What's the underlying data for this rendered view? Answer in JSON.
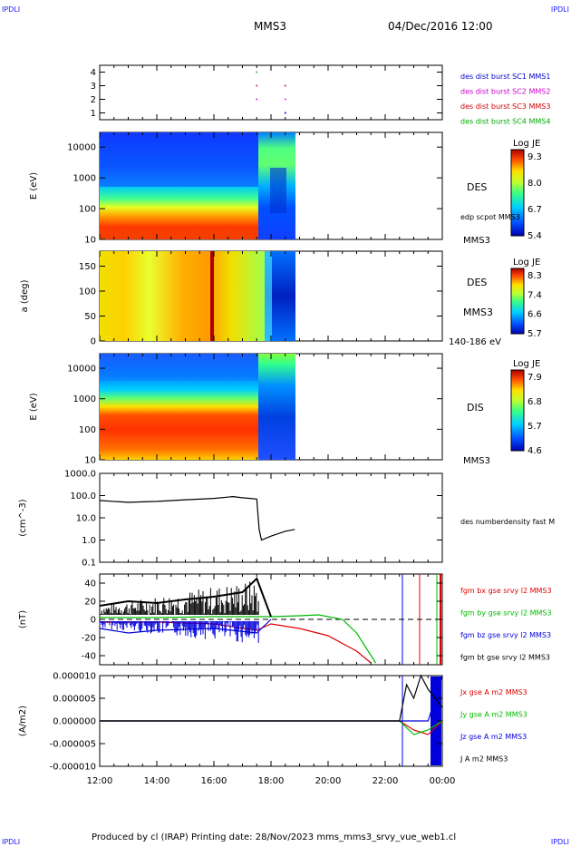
{
  "corner_tl": "IPDLI",
  "corner_tr": "IPDLI",
  "corner_bl": "IPDLI",
  "corner_br": "IPDLI",
  "header": {
    "spacecraft": "MMS3",
    "datetime": "04/Dec/2016 12:00"
  },
  "footer": "Produced by cl (IRAP)   Printing date: 28/Nov/2023   mms_mms3_srvy_vue_web1.cl",
  "x_ticks": [
    "12:00",
    "14:00",
    "16:00",
    "18:00",
    "20:00",
    "22:00",
    "00:00"
  ],
  "panel1": {
    "yticks": [
      "4",
      "3",
      "2",
      "1"
    ],
    "legend": [
      {
        "text": "des dist burst SC1 MMS1",
        "color": "#0000cc"
      },
      {
        "text": "des dist burst SC2 MMS2",
        "color": "#cc00cc"
      },
      {
        "text": "des dist burst SC3 MMS3",
        "color": "#cc0000"
      },
      {
        "text": "des dist burst SC4 MMS4",
        "color": "#00aa00"
      }
    ]
  },
  "panel2": {
    "ylabel": "E (eV)",
    "yticks": [
      "10000",
      "1000",
      "100",
      "10"
    ],
    "label1": "DES",
    "label2": "edp scpot MMS3",
    "label3": "MMS3",
    "cbar": {
      "title": "Log JE",
      "ticks": [
        "9.3",
        "8.0",
        "6.7",
        "5.4"
      ]
    }
  },
  "panel3": {
    "ylabel": "a (deg)",
    "yticks": [
      "150",
      "100",
      "50",
      "0"
    ],
    "label1": "DES",
    "label2": "MMS3",
    "label3": "140-186 eV",
    "cbar": {
      "title": "Log JE",
      "ticks": [
        "8.3",
        "7.4",
        "6.6",
        "5.7"
      ]
    }
  },
  "panel4": {
    "ylabel": "E (eV)",
    "yticks": [
      "10000",
      "1000",
      "100",
      "10"
    ],
    "label1": "DIS",
    "label2": "MMS3",
    "cbar": {
      "title": "Log JE",
      "ticks": [
        "7.9",
        "6.8",
        "5.7",
        "4.6"
      ]
    }
  },
  "panel5": {
    "ylabel": "(cm^-3)",
    "yticks": [
      "1000.0",
      "100.0",
      "10.0",
      "1.0",
      "0.1"
    ],
    "legend": "des numberdensity fast M"
  },
  "panel6": {
    "ylabel": "(nT)",
    "yticks": [
      "40",
      "20",
      "0",
      "-20",
      "-40"
    ],
    "legend": [
      {
        "text": "fgm bx gse srvy l2 MMS3",
        "color": "#dd0000"
      },
      {
        "text": "fgm by gse srvy l2 MMS3",
        "color": "#00bb00"
      },
      {
        "text": "fgm bz gse srvy l2 MMS3",
        "color": "#0000dd"
      },
      {
        "text": "fgm bt gse srvy l2 MMS3",
        "color": "#000000"
      }
    ]
  },
  "panel7": {
    "ylabel": "(A/m2)",
    "yticks": [
      "0.000010",
      "0.000005",
      "0.000000",
      "-0.000005",
      "-0.000010"
    ],
    "legend": [
      {
        "text": "Jx gse A m2 MMS3",
        "color": "#dd0000"
      },
      {
        "text": "Jy gse A m2 MMS3",
        "color": "#00bb00"
      },
      {
        "text": "Jz gse A m2 MMS3",
        "color": "#0000dd"
      },
      {
        "text": "J A m2 MMS3",
        "color": "#000000"
      }
    ]
  },
  "chart_data": [
    {
      "type": "scatter",
      "title": "",
      "x_range": [
        "12:00",
        "00:00"
      ],
      "ylim": [
        0.5,
        4.5
      ],
      "series": [
        {
          "name": "des dist burst SC1 MMS1",
          "x": [
            "18:30",
            "18:30"
          ],
          "y": [
            1,
            1
          ]
        },
        {
          "name": "des dist burst SC2 MMS2",
          "x": [
            "17:30",
            "18:30"
          ],
          "y": [
            2,
            2
          ]
        },
        {
          "name": "des dist burst SC3 MMS3",
          "x": [
            "17:30",
            "18:30"
          ],
          "y": [
            3,
            3
          ]
        },
        {
          "name": "des dist burst SC4 MMS4",
          "x": [
            "17:30"
          ],
          "y": [
            4
          ]
        }
      ]
    },
    {
      "type": "heatmap",
      "ylabel": "E (eV)",
      "yscale": "log",
      "ylim": [
        10,
        30000
      ],
      "x_range": [
        "12:00",
        "18:50"
      ],
      "colorbar": {
        "title": "Log JE",
        "range": [
          5.4,
          9.3
        ]
      }
    },
    {
      "type": "heatmap",
      "ylabel": "a (deg)",
      "ylim": [
        0,
        180
      ],
      "x_range": [
        "12:00",
        "18:50"
      ],
      "colorbar": {
        "title": "Log JE",
        "range": [
          5.7,
          8.3
        ]
      }
    },
    {
      "type": "heatmap",
      "ylabel": "E (eV)",
      "yscale": "log",
      "ylim": [
        10,
        30000
      ],
      "x_range": [
        "12:00",
        "18:50"
      ],
      "colorbar": {
        "title": "Log JE",
        "range": [
          4.6,
          7.9
        ]
      }
    },
    {
      "type": "line",
      "ylabel": "(cm^-3)",
      "yscale": "log",
      "ylim": [
        0.1,
        1000
      ],
      "series": [
        {
          "name": "des numberdensity fast M",
          "x": [
            "12:00",
            "13:00",
            "14:00",
            "15:00",
            "16:00",
            "16:40",
            "17:00",
            "17:30",
            "17:35",
            "17:40",
            "18:00",
            "18:30",
            "18:50"
          ],
          "y": [
            60,
            50,
            55,
            65,
            75,
            90,
            80,
            70,
            3,
            1.0,
            1.5,
            2.5,
            3.0
          ]
        }
      ]
    },
    {
      "type": "line",
      "ylabel": "(nT)",
      "ylim": [
        -50,
        50
      ],
      "series": [
        {
          "name": "fgm bx gse srvy l2 MMS3",
          "x": [
            "12:00",
            "14:00",
            "16:00",
            "17:30",
            "18:00",
            "19:00",
            "20:00",
            "21:00",
            "21:30"
          ],
          "y": [
            -3,
            -3,
            -5,
            -12,
            -5,
            -10,
            -18,
            -35,
            -48
          ]
        },
        {
          "name": "fgm by gse srvy l2 MMS3",
          "x": [
            "12:00",
            "14:00",
            "16:00",
            "17:30",
            "18:00",
            "19:00",
            "19:40",
            "20:30",
            "21:00",
            "21:40"
          ],
          "y": [
            2,
            2,
            3,
            3,
            3,
            4,
            5,
            0,
            -15,
            -48
          ]
        },
        {
          "name": "fgm bz gse srvy l2 MMS3",
          "x": [
            "12:00",
            "13:00",
            "14:00",
            "16:00",
            "17:30",
            "18:00"
          ],
          "y": [
            -10,
            -15,
            -12,
            -10,
            -15,
            0
          ]
        },
        {
          "name": "fgm bt gse srvy l2 MMS3",
          "x": [
            "12:00",
            "13:00",
            "14:00",
            "15:00",
            "16:00",
            "17:00",
            "17:30",
            "18:00"
          ],
          "y": [
            15,
            20,
            18,
            22,
            25,
            30,
            45,
            3
          ]
        }
      ]
    },
    {
      "type": "line",
      "ylabel": "(A/m2)",
      "ylim": [
        -1e-05,
        1e-05
      ],
      "series": [
        {
          "name": "Jx gse A m2 MMS3",
          "x": [
            "12:00",
            "22:30",
            "23:00",
            "23:30",
            "00:00"
          ],
          "y": [
            0,
            0,
            -2e-06,
            -3e-06,
            0
          ]
        },
        {
          "name": "Jy gse A m2 MMS3",
          "x": [
            "12:00",
            "22:30",
            "23:00",
            "23:30",
            "00:00"
          ],
          "y": [
            0,
            0,
            -3e-06,
            -2e-06,
            0
          ]
        },
        {
          "name": "Jz gse A m2 MMS3",
          "x": [
            "12:00",
            "22:30",
            "23:00",
            "23:30",
            "00:00"
          ],
          "y": [
            0,
            0,
            0,
            0,
            1e-05
          ]
        },
        {
          "name": "J A m2 MMS3",
          "x": [
            "12:00",
            "22:30",
            "22:45",
            "23:00",
            "23:15",
            "23:30",
            "00:00"
          ],
          "y": [
            0,
            0,
            8e-06,
            5e-06,
            1e-05,
            7e-06,
            3e-06
          ]
        }
      ]
    }
  ]
}
